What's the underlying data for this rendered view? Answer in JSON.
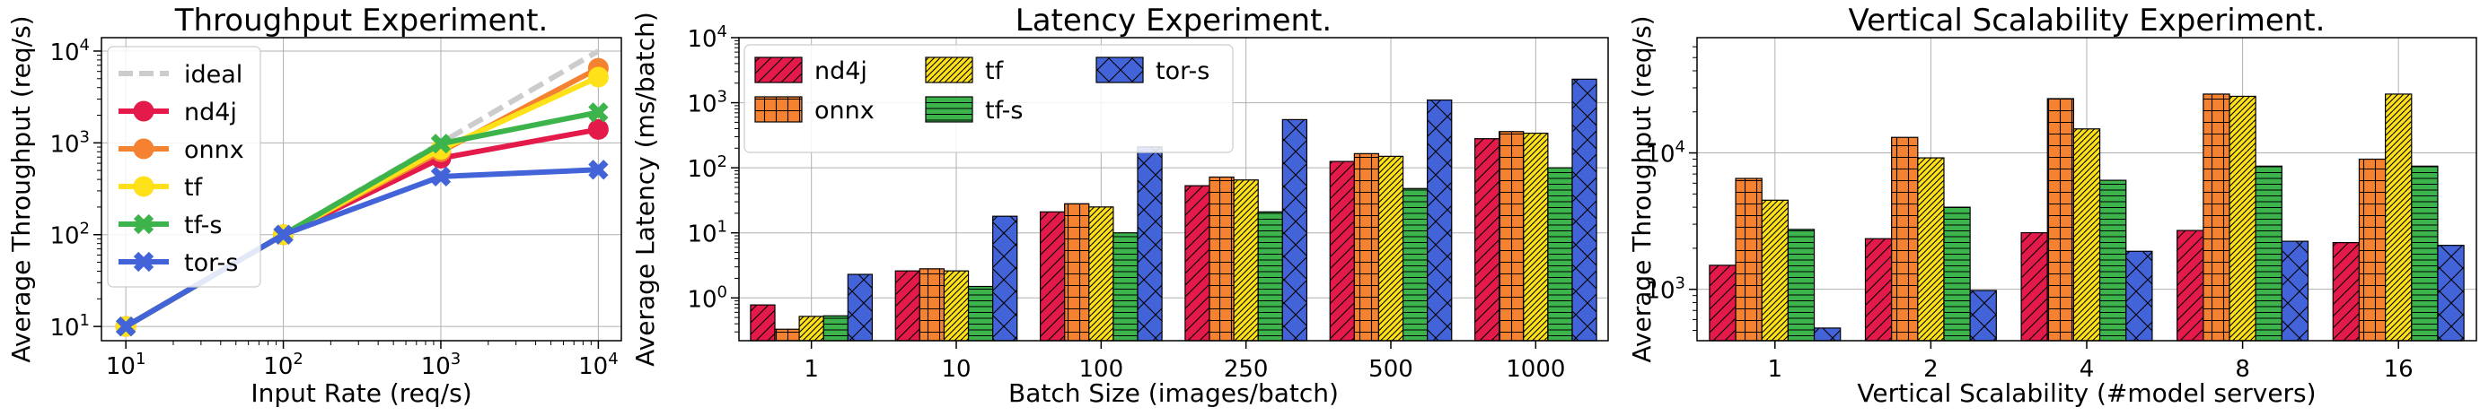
{
  "colors": {
    "nd4j": "#e31a4a",
    "onnx": "#f58231",
    "tf": "#ffe119",
    "tf-s": "#3cb44b",
    "tor-s": "#4363d8",
    "ideal": "#cccccc"
  },
  "chart_data": [
    {
      "type": "line",
      "title": "Throughput Experiment.",
      "xlabel": "Input Rate (req/s)",
      "ylabel": "Average Throughput (req/s)",
      "xscale": "log",
      "yscale": "log",
      "xlim": [
        7,
        14000
      ],
      "ylim": [
        7,
        14000
      ],
      "x": [
        10,
        100,
        1000,
        10000
      ],
      "xticks": [
        {
          "value": 10,
          "base": "10",
          "exp": "1"
        },
        {
          "value": 100,
          "base": "10",
          "exp": "2"
        },
        {
          "value": 1000,
          "base": "10",
          "exp": "3"
        },
        {
          "value": 10000,
          "base": "10",
          "exp": "4"
        }
      ],
      "yticks": [
        {
          "value": 10,
          "base": "10",
          "exp": "1"
        },
        {
          "value": 100,
          "base": "10",
          "exp": "2"
        },
        {
          "value": 1000,
          "base": "10",
          "exp": "3"
        },
        {
          "value": 10000,
          "base": "10",
          "exp": "4"
        }
      ],
      "grid": true,
      "legend_position": "upper-left",
      "series": [
        {
          "name": "ideal",
          "color": "#cccccc",
          "marker": "none",
          "dashed": true,
          "values": [
            10,
            100,
            1000,
            10000
          ]
        },
        {
          "name": "nd4j",
          "color": "#e31a4a",
          "marker": "circle",
          "values": [
            10,
            100,
            680,
            1400
          ]
        },
        {
          "name": "onnx",
          "color": "#f58231",
          "marker": "circle",
          "values": [
            10,
            100,
            800,
            6500
          ]
        },
        {
          "name": "tf",
          "color": "#ffe119",
          "marker": "circle",
          "values": [
            10,
            100,
            850,
            5200
          ]
        },
        {
          "name": "tf-s",
          "color": "#3cb44b",
          "marker": "x",
          "values": [
            10,
            100,
            980,
            2150
          ]
        },
        {
          "name": "tor-s",
          "color": "#4363d8",
          "marker": "x",
          "values": [
            10,
            100,
            430,
            510
          ]
        }
      ]
    },
    {
      "type": "bar",
      "title": "Latency Experiment.",
      "xlabel": "Batch Size (images/batch)",
      "ylabel": "Average Latency (ms/batch)",
      "yscale": "log",
      "ylim": [
        0.22,
        10000
      ],
      "categories": [
        "1",
        "10",
        "100",
        "250",
        "500",
        "1000"
      ],
      "yticks": [
        {
          "value": 1,
          "base": "10",
          "exp": "0"
        },
        {
          "value": 10,
          "base": "10",
          "exp": "1"
        },
        {
          "value": 100,
          "base": "10",
          "exp": "2"
        },
        {
          "value": 1000,
          "base": "10",
          "exp": "3"
        },
        {
          "value": 10000,
          "base": "10",
          "exp": "4"
        }
      ],
      "grid": true,
      "legend_position": "upper-left",
      "series": [
        {
          "name": "nd4j",
          "color": "#e31a4a",
          "hatch": "diag",
          "values": [
            0.78,
            2.6,
            21,
            53,
            125,
            280
          ]
        },
        {
          "name": "onnx",
          "color": "#f58231",
          "hatch": "grid",
          "values": [
            0.33,
            2.8,
            28,
            72,
            165,
            360
          ]
        },
        {
          "name": "tf",
          "color": "#ffe119",
          "hatch": "diag2",
          "values": [
            0.52,
            2.6,
            25,
            65,
            150,
            340
          ]
        },
        {
          "name": "tf-s",
          "color": "#3cb44b",
          "hatch": "horiz",
          "values": [
            0.53,
            1.5,
            10,
            21,
            48,
            100
          ]
        },
        {
          "name": "tor-s",
          "color": "#4363d8",
          "hatch": "cross",
          "values": [
            2.3,
            18,
            210,
            550,
            1100,
            2300
          ]
        }
      ]
    },
    {
      "type": "bar",
      "title": "Vertical Scalability Experiment.",
      "xlabel": "Vertical Scalability (#model servers)",
      "ylabel": "Average Throughput (req/s)",
      "yscale": "log",
      "ylim": [
        420,
        70000
      ],
      "categories": [
        "1",
        "2",
        "4",
        "8",
        "16"
      ],
      "yticks": [
        {
          "value": 1000,
          "base": "10",
          "exp": "3"
        },
        {
          "value": 10000,
          "base": "10",
          "exp": "4"
        }
      ],
      "grid": true,
      "series": [
        {
          "name": "nd4j",
          "color": "#e31a4a",
          "hatch": "diag",
          "values": [
            1500,
            2350,
            2600,
            2700,
            2200
          ]
        },
        {
          "name": "onnx",
          "color": "#f58231",
          "hatch": "grid",
          "values": [
            6500,
            13000,
            25000,
            27000,
            9000
          ]
        },
        {
          "name": "tf",
          "color": "#ffe119",
          "hatch": "diag2",
          "values": [
            4500,
            9200,
            15000,
            26000,
            27000
          ]
        },
        {
          "name": "tf-s",
          "color": "#3cb44b",
          "hatch": "horiz",
          "values": [
            2750,
            4000,
            6300,
            8000,
            8000
          ]
        },
        {
          "name": "tor-s",
          "color": "#4363d8",
          "hatch": "cross",
          "values": [
            520,
            980,
            1900,
            2250,
            2100
          ]
        }
      ]
    }
  ]
}
